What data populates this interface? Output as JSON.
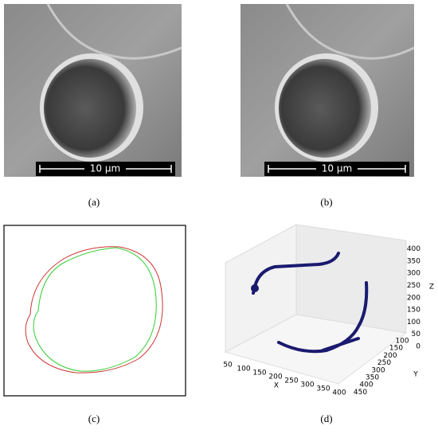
{
  "panels": [
    {
      "caption": "(a)",
      "scale_label": "10 μm"
    },
    {
      "caption": "(b)",
      "scale_label": "10 μm"
    },
    {
      "caption": "(c)"
    },
    {
      "caption": "(d)",
      "x_label": "X",
      "y_label": "Y",
      "z_label": "Z",
      "xticks": [
        50,
        100,
        150,
        200,
        250,
        300,
        350,
        400
      ],
      "yticks": [
        100,
        150,
        200,
        250,
        300,
        350,
        400,
        450
      ],
      "zticks": [
        0,
        50,
        100,
        150,
        200,
        250,
        300,
        350,
        400
      ]
    }
  ]
}
